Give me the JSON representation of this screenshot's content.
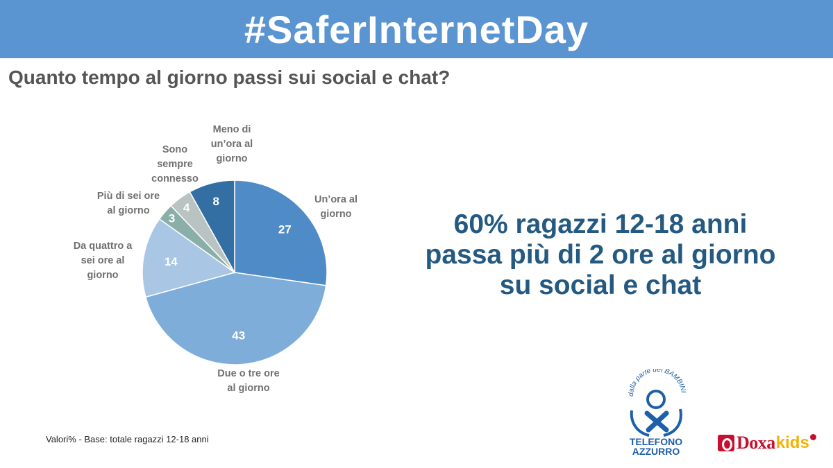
{
  "banner": {
    "title": "#SaferInternetDay"
  },
  "question": "Quanto tempo al giorno passi sui social e chat?",
  "headline": {
    "lines": [
      "60% ragazzi 12-18 anni",
      "passa più di 2 ore al giorno",
      "su social e chat"
    ],
    "color": "#245a82"
  },
  "footnote": "Valori% - Base: totale ragazzi 12-18 anni",
  "logos": {
    "telefono_azzurro": {
      "arc_text": "dalla parte dei BAMBINI",
      "line1": "TELEFONO",
      "line2": "AZZURRO"
    },
    "doxa": {
      "word": "Doxa",
      "kids": "kids"
    }
  },
  "chart_data": {
    "type": "pie",
    "title": "",
    "unit": "%",
    "start_angle_deg": 0,
    "direction": "clockwise",
    "slices": [
      {
        "label_lines": [
          "Un’ora al",
          "giorno"
        ],
        "value": 27,
        "color": "#4f8bc7"
      },
      {
        "label_lines": [
          "Due o tre ore",
          "al giorno"
        ],
        "value": 43,
        "color": "#7fadd9"
      },
      {
        "label_lines": [
          "Da quattro a",
          "sei ore al",
          "giorno"
        ],
        "value": 14,
        "color": "#a9c6e4"
      },
      {
        "label_lines": [
          "Più di sei ore",
          "al giorno"
        ],
        "value": 3,
        "color": "#8aaea8"
      },
      {
        "label_lines": [
          "Sono",
          "sempre",
          "connesso"
        ],
        "value": 4,
        "color": "#b9c3c2"
      },
      {
        "label_lines": [
          "Meno di",
          "un’ora al",
          "giorno"
        ],
        "value": 8,
        "color": "#336fa3"
      }
    ]
  }
}
